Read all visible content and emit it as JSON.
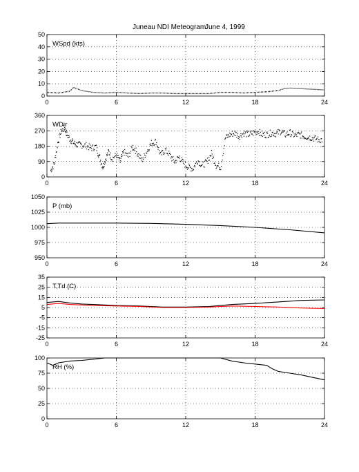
{
  "figure": {
    "title": "Juneau NDI Meteogram:",
    "date": "June  4, 1999"
  },
  "chart_data": [
    {
      "type": "line",
      "id": "wspd",
      "label": "WSpd (kts)",
      "xlim": [
        0,
        24
      ],
      "xticks": [
        0,
        6,
        12,
        18,
        24
      ],
      "ylim": [
        0,
        50
      ],
      "yticks": [
        0,
        10,
        20,
        30,
        40,
        50
      ],
      "grid": true,
      "series": [
        {
          "color": "#000000",
          "style": "dotted",
          "x": [
            0,
            1,
            2,
            2.3,
            3,
            4,
            5,
            6,
            7,
            8,
            9,
            10,
            11,
            12,
            13,
            14,
            15,
            16,
            17,
            18,
            19,
            20,
            20.5,
            21,
            22,
            23,
            24
          ],
          "y": [
            3,
            2.5,
            4,
            7,
            4.5,
            3,
            2.5,
            3,
            2.5,
            2,
            2.5,
            2.5,
            2,
            2,
            2,
            2,
            3,
            3,
            2.5,
            3,
            3.5,
            4.5,
            6,
            6.5,
            6,
            5.5,
            5
          ]
        }
      ]
    },
    {
      "type": "scatter",
      "id": "wdir",
      "label": "WDir",
      "xlim": [
        0,
        24
      ],
      "xticks": [
        0,
        6,
        12,
        18,
        24
      ],
      "ylim": [
        0,
        360
      ],
      "yticks": [
        0,
        90,
        180,
        270,
        360
      ],
      "grid": true,
      "series": [
        {
          "color": "#000000",
          "x": [
            0.3,
            0.6,
            0.9,
            1.2,
            1.5,
            1.7,
            2.0,
            2.3,
            2.6,
            3.0,
            3.4,
            3.8,
            4.2,
            4.5,
            4.8,
            5.0,
            5.3,
            5.6,
            6.0,
            6.3,
            6.6,
            7.0,
            7.4,
            7.8,
            8.2,
            8.6,
            9.0,
            9.4,
            9.8,
            10.2,
            10.6,
            11.0,
            11.4,
            11.8,
            12.2,
            12.6,
            13.0,
            13.4,
            13.8,
            14.2,
            14.6,
            15.0,
            15.4,
            15.8,
            16.2,
            16.6,
            17.0,
            17.4,
            17.8,
            18.2,
            18.6,
            19.0,
            19.4,
            19.8,
            20.2,
            20.6,
            21.0,
            21.4,
            21.8,
            22.2,
            22.6,
            23.0,
            23.4,
            23.8
          ],
          "y": [
            40,
            80,
            200,
            270,
            290,
            250,
            220,
            200,
            190,
            190,
            185,
            170,
            180,
            120,
            60,
            100,
            150,
            110,
            130,
            90,
            150,
            120,
            180,
            140,
            100,
            150,
            200,
            210,
            130,
            160,
            130,
            90,
            120,
            80,
            60,
            50,
            100,
            70,
            90,
            140,
            70,
            60,
            230,
            250,
            260,
            240,
            260,
            250,
            260,
            270,
            250,
            250,
            260,
            255,
            270,
            250,
            260,
            245,
            250,
            240,
            235,
            230,
            220,
            220
          ]
        }
      ]
    },
    {
      "type": "line",
      "id": "pressure",
      "label": "P (mb)",
      "xlim": [
        0,
        24
      ],
      "xticks": [
        0,
        6,
        12,
        18,
        24
      ],
      "ylim": [
        950,
        1050
      ],
      "yticks": [
        950,
        975,
        1000,
        1025,
        1050
      ],
      "grid": true,
      "series": [
        {
          "color": "#000000",
          "style": "solid",
          "x": [
            0,
            1,
            3,
            6,
            9,
            12,
            15,
            18,
            21,
            24
          ],
          "y": [
            1006,
            1007,
            1007,
            1007,
            1006.5,
            1005,
            1003,
            1000,
            996,
            991
          ]
        }
      ]
    },
    {
      "type": "line",
      "id": "temperature",
      "label": "T,Td (C)",
      "xlim": [
        0,
        24
      ],
      "xticks": [
        0,
        6,
        12,
        18,
        24
      ],
      "ylim": [
        -25,
        35
      ],
      "yticks": [
        -25,
        -15,
        -5,
        5,
        15,
        25,
        35
      ],
      "grid": true,
      "series": [
        {
          "color": "#000000",
          "style": "solid",
          "x": [
            0,
            1,
            2,
            3,
            4,
            6,
            8,
            10,
            12,
            14,
            15,
            16,
            18,
            20,
            22,
            24
          ],
          "y": [
            10,
            11,
            9.5,
            8.5,
            8,
            7,
            6.5,
            5.5,
            5.5,
            6,
            7,
            8,
            9,
            10.5,
            12,
            12.5
          ]
        },
        {
          "color": "#ff0000",
          "style": "solid",
          "x": [
            0,
            1,
            2,
            3,
            4,
            6,
            8,
            10,
            12,
            14,
            15,
            16,
            18,
            20,
            22,
            24
          ],
          "y": [
            8,
            9,
            8,
            7.5,
            7,
            6.5,
            6,
            5,
            5,
            5.5,
            6,
            6.5,
            6,
            5.5,
            4.5,
            4
          ]
        }
      ]
    },
    {
      "type": "line",
      "id": "rh",
      "label": "RH (%)",
      "xlim": [
        0,
        24
      ],
      "xticks": [
        0,
        6,
        12,
        18,
        24
      ],
      "ylim": [
        0,
        100
      ],
      "yticks": [
        0,
        25,
        50,
        75,
        100
      ],
      "grid": true,
      "series": [
        {
          "color": "#000000",
          "style": "solid",
          "x": [
            0,
            0.5,
            1,
            2,
            3,
            4,
            5,
            6,
            7,
            8,
            9,
            10,
            11,
            12,
            13,
            14,
            15,
            16,
            17,
            18,
            19,
            19.5,
            20,
            21,
            22,
            23,
            24
          ],
          "y": [
            92,
            88,
            92,
            95,
            96,
            98,
            100,
            100,
            100,
            100,
            100,
            100,
            100,
            100,
            100,
            100,
            100,
            95,
            92,
            90,
            88,
            82,
            78,
            75,
            72,
            68,
            64
          ]
        }
      ]
    }
  ]
}
